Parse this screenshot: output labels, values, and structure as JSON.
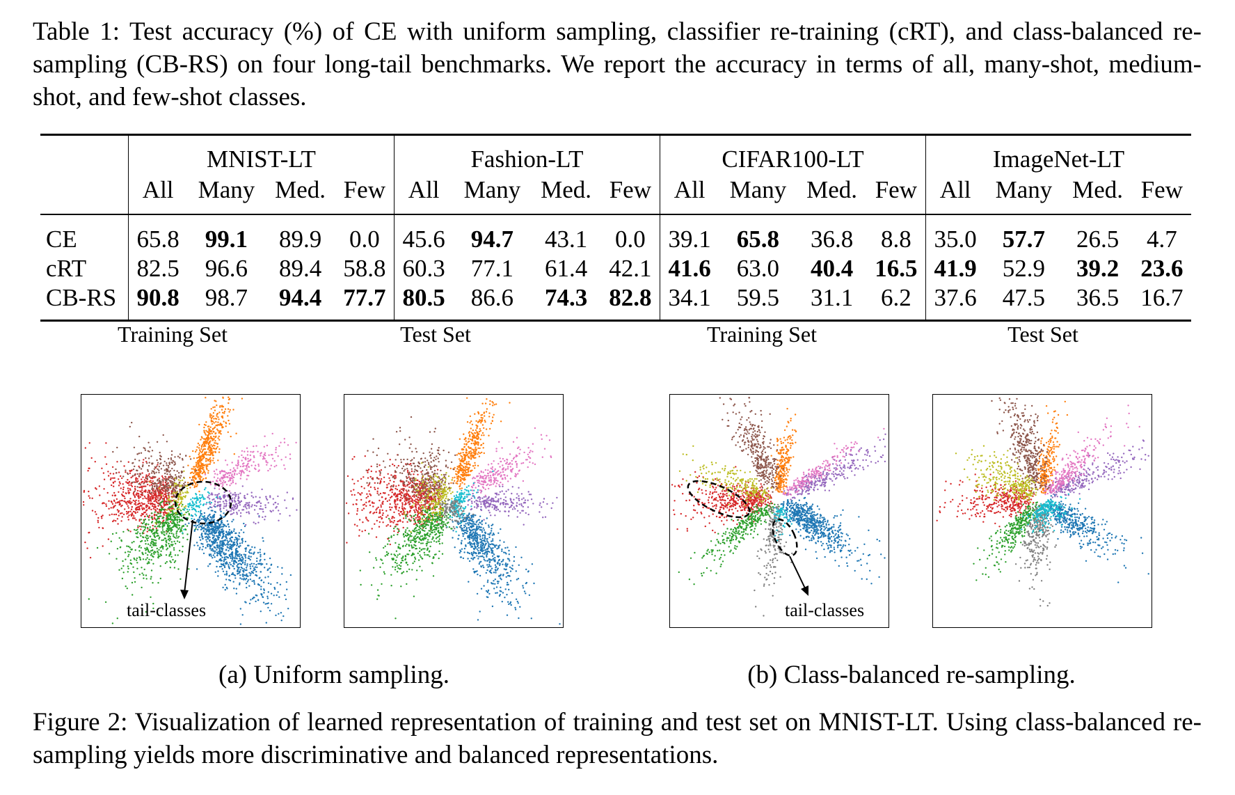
{
  "table": {
    "caption": "Table 1: Test accuracy (%) of CE with uniform sampling, classifier re-training (cRT), and class-balanced re-sampling (CB-RS) on four long-tail benchmarks. We report the accuracy in terms of all, many-shot, medium-shot, and few-shot classes.",
    "datasets": [
      "MNIST-LT",
      "Fashion-LT",
      "CIFAR100-LT",
      "ImageNet-LT"
    ],
    "subcols": [
      "All",
      "Many",
      "Med.",
      "Few"
    ],
    "rows": [
      {
        "method": "CE",
        "values": [
          "65.8",
          "99.1",
          "89.9",
          "0.0",
          "45.6",
          "94.7",
          "43.1",
          "0.0",
          "39.1",
          "65.8",
          "36.8",
          "8.8",
          "35.0",
          "57.7",
          "26.5",
          "4.7"
        ],
        "bold": [
          false,
          true,
          false,
          false,
          false,
          true,
          false,
          false,
          false,
          true,
          false,
          false,
          false,
          true,
          false,
          false
        ]
      },
      {
        "method": "cRT",
        "values": [
          "82.5",
          "96.6",
          "89.4",
          "58.8",
          "60.3",
          "77.1",
          "61.4",
          "42.1",
          "41.6",
          "63.0",
          "40.4",
          "16.5",
          "41.9",
          "52.9",
          "39.2",
          "23.6"
        ],
        "bold": [
          false,
          false,
          false,
          false,
          false,
          false,
          false,
          false,
          true,
          false,
          true,
          true,
          true,
          false,
          true,
          true
        ]
      },
      {
        "method": "CB-RS",
        "values": [
          "90.8",
          "98.7",
          "94.4",
          "77.7",
          "80.5",
          "86.6",
          "74.3",
          "82.8",
          "34.1",
          "59.5",
          "31.1",
          "6.2",
          "37.6",
          "47.5",
          "36.5",
          "16.7"
        ],
        "bold": [
          true,
          false,
          true,
          true,
          true,
          false,
          true,
          true,
          false,
          false,
          false,
          false,
          false,
          false,
          false,
          false
        ]
      }
    ]
  },
  "figure": {
    "panels": [
      {
        "title": "Training Set",
        "annotation": "tail-classes"
      },
      {
        "title": "Test Set",
        "annotation": ""
      },
      {
        "title": "Training Set",
        "annotation": "tail-classes"
      },
      {
        "title": "Test Set",
        "annotation": ""
      }
    ],
    "subcaption_a": "(a) Uniform sampling.",
    "subcaption_b": "(b) Class-balanced re-sampling.",
    "caption": "Figure 2: Visualization of learned representation of training and test set on MNIST-LT. Using class-balanced re-sampling yields more discriminative and balanced representations.",
    "class_colors": [
      "#1f77b4",
      "#ff7f0e",
      "#2ca02c",
      "#d62728",
      "#9467bd",
      "#8c564b",
      "#e377c2",
      "#7f7f7f",
      "#bcbd22",
      "#17becf"
    ]
  }
}
